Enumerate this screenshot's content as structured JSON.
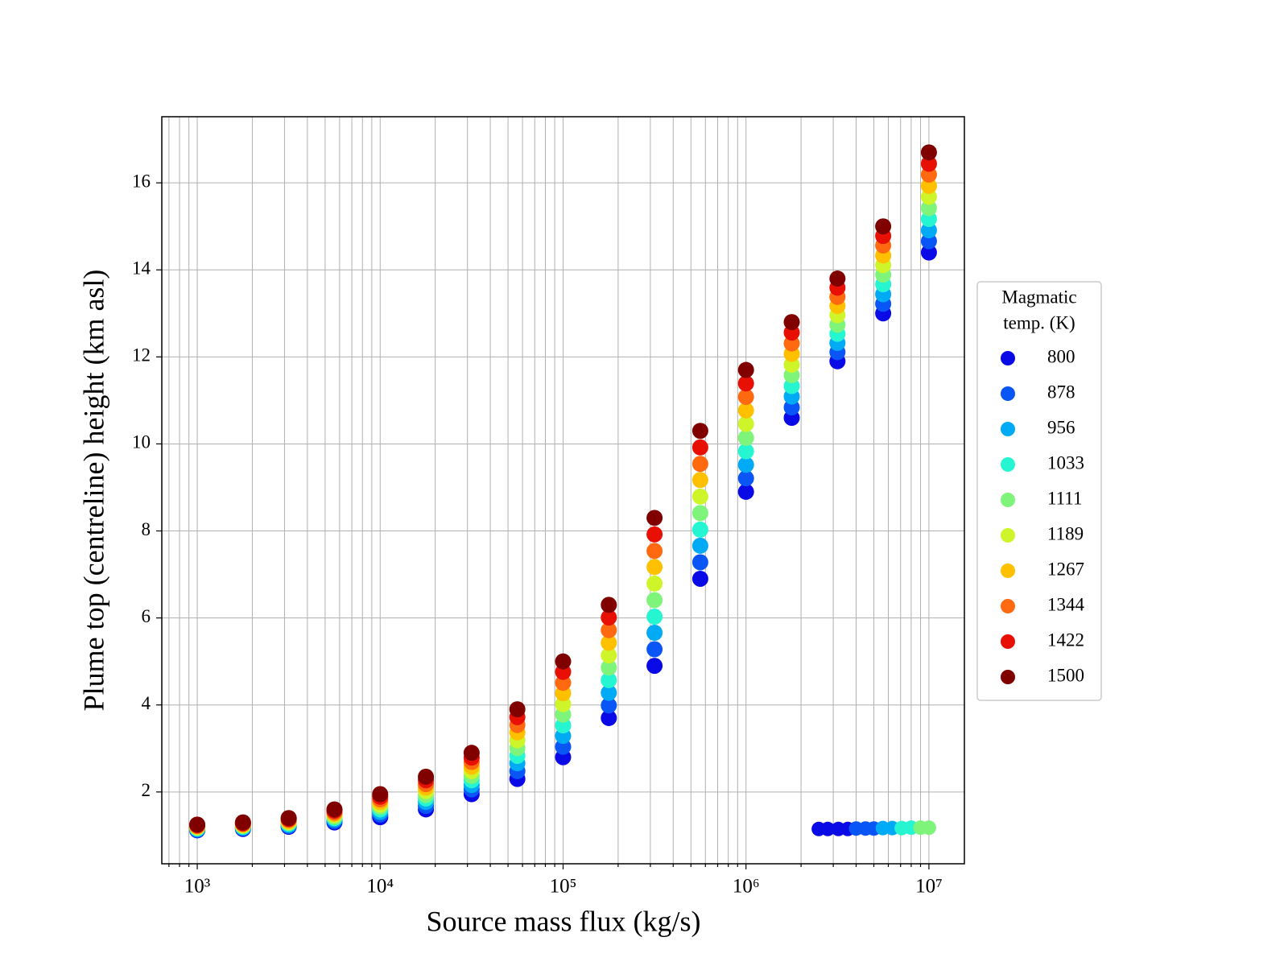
{
  "chart_data": {
    "type": "scatter",
    "xlabel": "Source mass flux (kg/s)",
    "ylabel": "Plume top (centreline) height (km asl)",
    "xscale": "log",
    "xlim": [
      640,
      15630000
    ],
    "ylim": [
      0.35,
      17.52
    ],
    "xticks": [
      {
        "value": 1000,
        "label": "10³"
      },
      {
        "value": 10000,
        "label": "10⁴"
      },
      {
        "value": 100000,
        "label": "10⁵"
      },
      {
        "value": 1000000,
        "label": "10⁶"
      },
      {
        "value": 10000000,
        "label": "10⁷"
      }
    ],
    "xminor_ticks": [
      700,
      800,
      900,
      2000,
      3000,
      4000,
      5000,
      6000,
      7000,
      8000,
      9000,
      20000,
      30000,
      40000,
      50000,
      60000,
      70000,
      80000,
      90000,
      200000,
      300000,
      400000,
      500000,
      600000,
      700000,
      800000,
      900000,
      2000000,
      3000000,
      4000000,
      5000000,
      6000000,
      7000000,
      8000000,
      9000000
    ],
    "yticks": [
      2,
      4,
      6,
      8,
      10,
      12,
      14,
      16
    ],
    "grid": true,
    "legend_title": [
      "Magmatic",
      "temp. (K)"
    ],
    "legend_position": "right",
    "x": [
      1000,
      1778,
      3162,
      5623,
      10000,
      17783,
      31623,
      56234,
      100000,
      177828,
      316228,
      562341,
      1000000,
      1778279,
      3162278,
      5623413,
      10000000
    ],
    "series": [
      {
        "name": "800",
        "color": "#0a0ae6",
        "values": [
          1.12,
          1.15,
          1.2,
          1.3,
          1.42,
          1.6,
          1.95,
          2.3,
          2.8,
          3.7,
          4.9,
          6.9,
          8.9,
          10.6,
          11.9,
          13.0,
          14.4
        ]
      },
      {
        "name": "878",
        "color": "#0a55f5",
        "values": [
          1.13,
          1.17,
          1.22,
          1.33,
          1.48,
          1.68,
          2.06,
          2.48,
          3.04,
          3.99,
          5.28,
          7.28,
          9.21,
          10.84,
          12.11,
          13.22,
          14.66
        ]
      },
      {
        "name": "956",
        "color": "#00aaf5",
        "values": [
          1.15,
          1.18,
          1.24,
          1.37,
          1.54,
          1.77,
          2.16,
          2.66,
          3.29,
          4.28,
          5.66,
          7.66,
          9.52,
          11.09,
          12.32,
          13.44,
          14.91
        ]
      },
      {
        "name": "1033",
        "color": "#25f5d0",
        "values": [
          1.16,
          1.2,
          1.27,
          1.4,
          1.6,
          1.85,
          2.27,
          2.83,
          3.53,
          4.57,
          6.03,
          8.03,
          9.83,
          11.33,
          12.53,
          13.67,
          15.17
        ]
      },
      {
        "name": "1111",
        "color": "#7ef57a",
        "values": [
          1.18,
          1.22,
          1.29,
          1.43,
          1.66,
          1.93,
          2.37,
          3.01,
          3.78,
          4.86,
          6.41,
          8.41,
          10.14,
          11.58,
          12.74,
          13.89,
          15.42
        ]
      },
      {
        "name": "1189",
        "color": "#cdf52a",
        "values": [
          1.19,
          1.23,
          1.31,
          1.47,
          1.71,
          2.02,
          2.48,
          3.19,
          4.02,
          5.14,
          6.79,
          8.79,
          10.46,
          11.82,
          12.96,
          14.11,
          15.68
        ]
      },
      {
        "name": "1267",
        "color": "#ffc000",
        "values": [
          1.21,
          1.25,
          1.33,
          1.5,
          1.77,
          2.1,
          2.58,
          3.37,
          4.27,
          5.43,
          7.17,
          9.17,
          10.77,
          12.07,
          13.17,
          14.33,
          15.93
        ]
      },
      {
        "name": "1344",
        "color": "#ff6a10",
        "values": [
          1.22,
          1.27,
          1.36,
          1.53,
          1.83,
          2.18,
          2.69,
          3.54,
          4.51,
          5.72,
          7.54,
          9.54,
          11.08,
          12.31,
          13.38,
          14.56,
          16.19
        ]
      },
      {
        "name": "1422",
        "color": "#e81005",
        "values": [
          1.24,
          1.28,
          1.38,
          1.57,
          1.89,
          2.27,
          2.79,
          3.72,
          4.76,
          6.01,
          7.92,
          9.92,
          11.39,
          12.56,
          13.59,
          14.78,
          16.44
        ]
      },
      {
        "name": "1500",
        "color": "#800000",
        "values": [
          1.25,
          1.3,
          1.4,
          1.6,
          1.95,
          2.35,
          2.9,
          3.9,
          5.0,
          6.3,
          8.3,
          10.3,
          11.7,
          12.8,
          13.8,
          15.0,
          16.7
        ]
      }
    ],
    "extra_points": {
      "x": [
        2500000,
        2800000,
        3200000,
        3600000,
        4000000,
        4500000,
        5000000,
        5600000,
        6300000,
        7100000,
        8000000,
        9000000,
        10000000
      ],
      "y": [
        1.15,
        1.15,
        1.15,
        1.15,
        1.16,
        1.16,
        1.16,
        1.17,
        1.17,
        1.17,
        1.18,
        1.18,
        1.18
      ],
      "colors": [
        "#0a0ae6",
        "#0a0ae6",
        "#0a0ae6",
        "#0a0ae6",
        "#0a55f5",
        "#0a55f5",
        "#0a55f5",
        "#00aaf5",
        "#00aaf5",
        "#25f5d0",
        "#25f5d0",
        "#7ef57a",
        "#7ef57a"
      ]
    }
  }
}
